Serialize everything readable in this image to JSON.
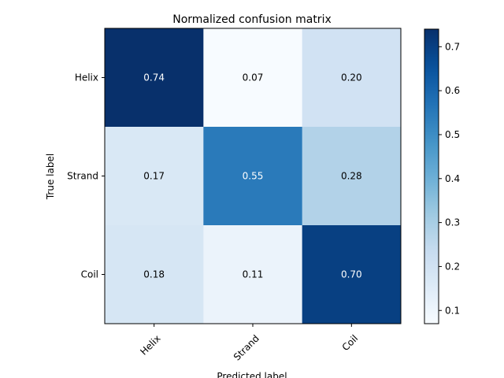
{
  "chart_data": {
    "type": "heatmap",
    "title": "Normalized confusion matrix",
    "xlabel": "Predicted label",
    "ylabel": "True label",
    "x_categories": [
      "Helix",
      "Strand",
      "Coil"
    ],
    "y_categories": [
      "Helix",
      "Strand",
      "Coil"
    ],
    "values": [
      [
        0.74,
        0.07,
        0.2
      ],
      [
        0.17,
        0.55,
        0.28
      ],
      [
        0.18,
        0.11,
        0.7
      ]
    ],
    "value_labels": [
      [
        "0.74",
        "0.07",
        "0.20"
      ],
      [
        "0.17",
        "0.55",
        "0.28"
      ],
      [
        "0.18",
        "0.11",
        "0.70"
      ]
    ],
    "colormap": "Blues",
    "colorbar": {
      "range": [
        0.07,
        0.74
      ],
      "ticks": [
        0.1,
        0.2,
        0.3,
        0.4,
        0.5,
        0.6,
        0.7
      ],
      "tick_labels": [
        "0.1",
        "0.2",
        "0.3",
        "0.4",
        "0.5",
        "0.6",
        "0.7"
      ]
    },
    "x_tick_rotation": 45,
    "grid": false
  }
}
